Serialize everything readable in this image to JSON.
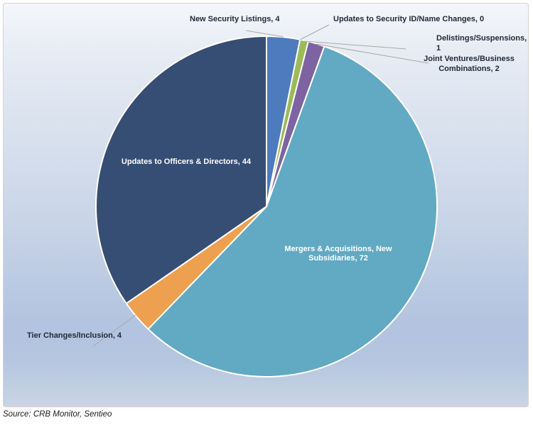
{
  "page": {
    "background_color": "#ffffff",
    "chart_area_border_color": "#d9d5ce",
    "background_gradient_top": "#f4f6fa",
    "background_gradient_bottom": "#cad5e4",
    "leader_line_color": "#a9a8a5",
    "callout_text_color": "#212a39",
    "inside_label_text_color": "#ffffff"
  },
  "source_note": "Source: CRB Monitor, Sentieo",
  "chart_data": {
    "type": "pie",
    "title": "",
    "total": 127,
    "start_angle_deg": 0,
    "direction": "clockwise",
    "legend": "none",
    "slice_border_color": "#ffffff",
    "slices": [
      {
        "label": "New Security Listings",
        "value": 4,
        "color": "#4e7bbd",
        "callout": "New Security Listings, 4",
        "label_position": "outside-top"
      },
      {
        "label": "Updates to Security ID/Name Changes",
        "value": 0,
        "color": null,
        "callout": "Updates to Security ID/Name Changes, 0",
        "label_position": "outside-top-right"
      },
      {
        "label": "Delistings/Suspensions",
        "value": 1,
        "color": "#9bba58",
        "callout": "Delistings/Suspensions, 1",
        "label_position": "outside-right"
      },
      {
        "label": "Joint Ventures/Business Combinations",
        "value": 2,
        "color": "#7d63a1",
        "callout": "Joint Ventures/Business\nCombinations, 2",
        "label_position": "outside-right"
      },
      {
        "label": "Mergers & Acquisitions, New Subsidiaries",
        "value": 72,
        "color": "#62a9c3",
        "callout": "Mergers & Acquisitions, New\nSubsidiaries, 72",
        "label_position": "inside"
      },
      {
        "label": "Tier Changes/Inclusion",
        "value": 4,
        "color": "#eda04f",
        "callout": "Tier Changes/Inclusion, 4",
        "label_position": "outside-left"
      },
      {
        "label": "Updates to Officers & Directors",
        "value": 44,
        "color": "#364e73",
        "callout": "Updates to Officers & Directors, 44",
        "label_position": "inside"
      }
    ]
  }
}
